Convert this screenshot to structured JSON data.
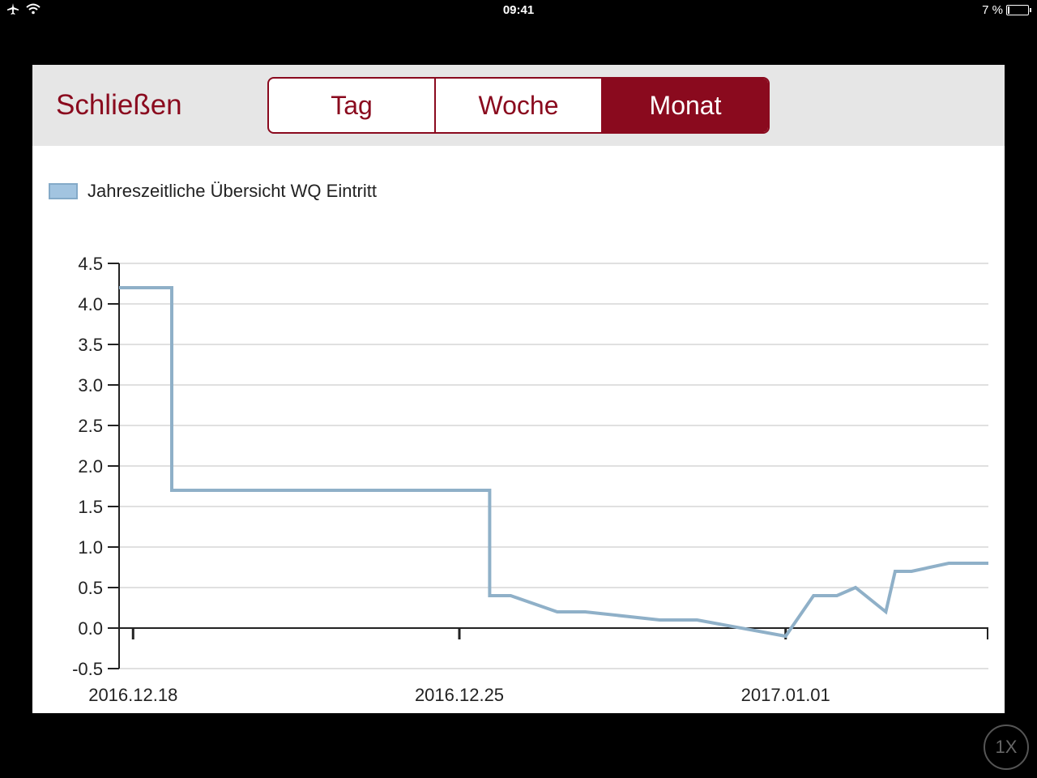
{
  "status_bar": {
    "time": "09:41",
    "battery": "7 %",
    "battery_level": 0.07
  },
  "toolbar": {
    "close_label": "Schließen",
    "segments": [
      {
        "label": "Tag",
        "active": false
      },
      {
        "label": "Woche",
        "active": false
      },
      {
        "label": "Monat",
        "active": true
      }
    ]
  },
  "colors": {
    "accent": "#8a0a1e",
    "series": "#8fb0c8",
    "grid": "#e0e0e0"
  },
  "chart_data": {
    "type": "line",
    "legend": "Jahreszeitliche Übersicht WQ Eintritt",
    "legend_position": "top-left",
    "grid": true,
    "y_ticks": [
      "4.5",
      "4.0",
      "3.5",
      "3.0",
      "2.5",
      "2.0",
      "1.5",
      "1.0",
      "0.5",
      "0.0",
      "-0.5"
    ],
    "ylim": [
      -0.5,
      4.5
    ],
    "x_ticks": [
      {
        "label": "2016.12.18",
        "day": 0
      },
      {
        "label": "2016.12.25",
        "day": 7
      },
      {
        "label": "2017.01.01",
        "day": 14
      }
    ],
    "xlim_days": [
      -0.3,
      18.35
    ],
    "x_reference_date": "2016.12.18",
    "series": [
      {
        "name": "Jahreszeitliche Übersicht WQ Eintritt",
        "points": [
          [
            -0.3,
            4.2
          ],
          [
            0.83,
            4.2
          ],
          [
            0.83,
            1.7
          ],
          [
            7.65,
            1.7
          ],
          [
            7.65,
            0.4
          ],
          [
            8.1,
            0.4
          ],
          [
            9.1,
            0.2
          ],
          [
            9.7,
            0.2
          ],
          [
            11.3,
            0.1
          ],
          [
            12.1,
            0.1
          ],
          [
            14.0,
            -0.1
          ],
          [
            14.6,
            0.4
          ],
          [
            15.1,
            0.4
          ],
          [
            15.5,
            0.5
          ],
          [
            16.15,
            0.2
          ],
          [
            16.35,
            0.7
          ],
          [
            16.7,
            0.7
          ],
          [
            17.5,
            0.8
          ],
          [
            18.35,
            0.8
          ]
        ]
      }
    ]
  }
}
